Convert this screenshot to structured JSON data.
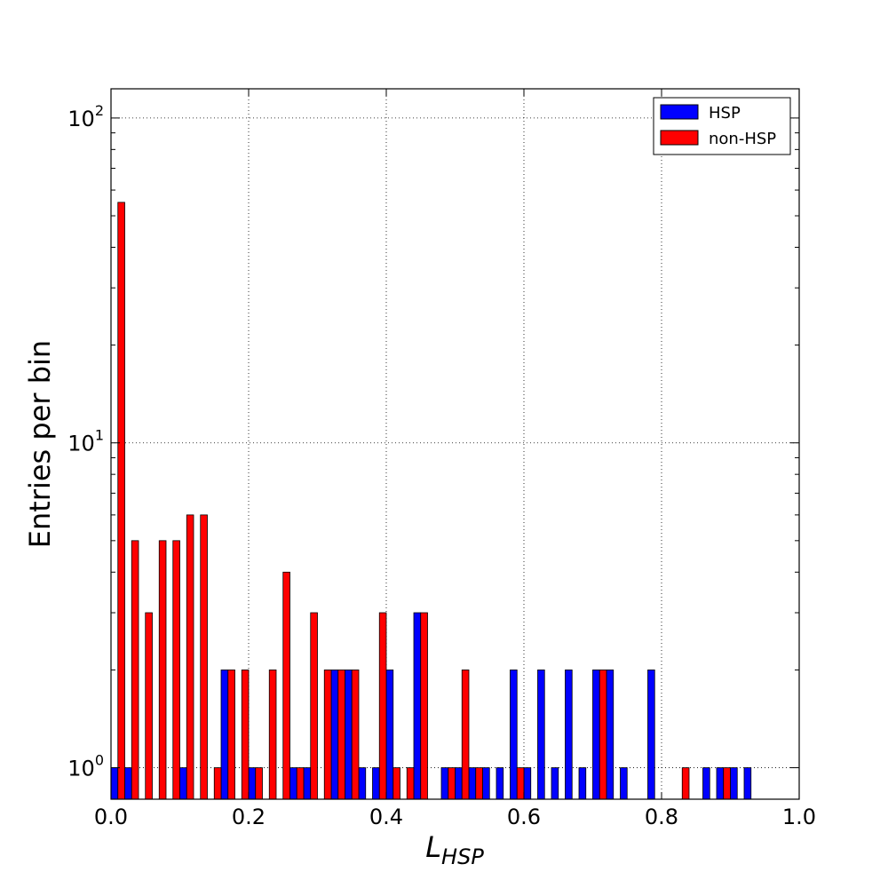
{
  "chart_data": {
    "type": "bar",
    "xlabel": "L",
    "xlabel_sub": "HSP",
    "ylabel": "Entries per bin",
    "xlim": [
      0.0,
      1.0
    ],
    "ylim": [
      0.8,
      123
    ],
    "yscale": "log",
    "grid": true,
    "legend_position": "top-right",
    "x_ticks": [
      "0.0",
      "0.2",
      "0.4",
      "0.6",
      "0.8",
      "1.0"
    ],
    "y_ticks": [
      {
        "base": "10",
        "exp": "0",
        "value": 1
      },
      {
        "base": "10",
        "exp": "1",
        "value": 10
      },
      {
        "base": "10",
        "exp": "2",
        "value": 100
      }
    ],
    "bin_width": 0.02,
    "series": [
      {
        "name": "HSP",
        "color": "#0000ff",
        "bins": [
          {
            "x": 0.0,
            "y": 1
          },
          {
            "x": 0.02,
            "y": 1
          },
          {
            "x": 0.1,
            "y": 1
          },
          {
            "x": 0.16,
            "y": 2
          },
          {
            "x": 0.2,
            "y": 1
          },
          {
            "x": 0.26,
            "y": 1
          },
          {
            "x": 0.28,
            "y": 1
          },
          {
            "x": 0.32,
            "y": 2
          },
          {
            "x": 0.34,
            "y": 2
          },
          {
            "x": 0.36,
            "y": 1
          },
          {
            "x": 0.38,
            "y": 1
          },
          {
            "x": 0.4,
            "y": 2
          },
          {
            "x": 0.44,
            "y": 3
          },
          {
            "x": 0.48,
            "y": 1
          },
          {
            "x": 0.5,
            "y": 1
          },
          {
            "x": 0.52,
            "y": 1
          },
          {
            "x": 0.54,
            "y": 1
          },
          {
            "x": 0.56,
            "y": 1
          },
          {
            "x": 0.58,
            "y": 2
          },
          {
            "x": 0.6,
            "y": 1
          },
          {
            "x": 0.62,
            "y": 2
          },
          {
            "x": 0.64,
            "y": 1
          },
          {
            "x": 0.66,
            "y": 2
          },
          {
            "x": 0.68,
            "y": 1
          },
          {
            "x": 0.7,
            "y": 2
          },
          {
            "x": 0.72,
            "y": 2
          },
          {
            "x": 0.74,
            "y": 1
          },
          {
            "x": 0.78,
            "y": 2
          },
          {
            "x": 0.86,
            "y": 1
          },
          {
            "x": 0.88,
            "y": 1
          },
          {
            "x": 0.9,
            "y": 1
          },
          {
            "x": 0.92,
            "y": 1
          }
        ]
      },
      {
        "name": "non-HSP",
        "color": "#ff0000",
        "bins": [
          {
            "x": 0.0,
            "y": 55
          },
          {
            "x": 0.02,
            "y": 5
          },
          {
            "x": 0.04,
            "y": 3
          },
          {
            "x": 0.06,
            "y": 5
          },
          {
            "x": 0.08,
            "y": 5
          },
          {
            "x": 0.1,
            "y": 6
          },
          {
            "x": 0.12,
            "y": 6
          },
          {
            "x": 0.14,
            "y": 1
          },
          {
            "x": 0.16,
            "y": 2
          },
          {
            "x": 0.18,
            "y": 2
          },
          {
            "x": 0.2,
            "y": 1
          },
          {
            "x": 0.22,
            "y": 2
          },
          {
            "x": 0.24,
            "y": 4
          },
          {
            "x": 0.26,
            "y": 1
          },
          {
            "x": 0.28,
            "y": 3
          },
          {
            "x": 0.3,
            "y": 2
          },
          {
            "x": 0.32,
            "y": 2
          },
          {
            "x": 0.34,
            "y": 2
          },
          {
            "x": 0.38,
            "y": 3
          },
          {
            "x": 0.4,
            "y": 1
          },
          {
            "x": 0.42,
            "y": 1
          },
          {
            "x": 0.44,
            "y": 3
          },
          {
            "x": 0.48,
            "y": 1
          },
          {
            "x": 0.5,
            "y": 2
          },
          {
            "x": 0.52,
            "y": 1
          },
          {
            "x": 0.58,
            "y": 1
          },
          {
            "x": 0.7,
            "y": 2
          },
          {
            "x": 0.82,
            "y": 1
          },
          {
            "x": 0.88,
            "y": 1
          }
        ]
      }
    ]
  }
}
